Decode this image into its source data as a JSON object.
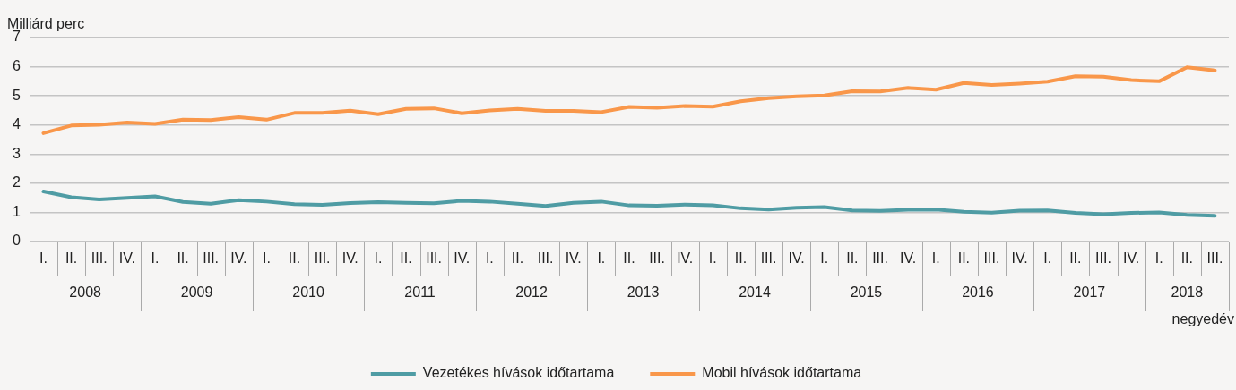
{
  "chart_data": {
    "type": "line",
    "ylabel": "Milliárd perc",
    "xlabel": "negyedév",
    "categories": [
      "I.",
      "II.",
      "III.",
      "IV.",
      "I.",
      "II.",
      "III.",
      "IV.",
      "I.",
      "II.",
      "III.",
      "IV.",
      "I.",
      "II.",
      "III.",
      "IV.",
      "I.",
      "II.",
      "III.",
      "IV.",
      "I.",
      "II.",
      "III.",
      "IV.",
      "I.",
      "II.",
      "III.",
      "IV.",
      "I.",
      "II.",
      "III.",
      "IV.",
      "I.",
      "II.",
      "III.",
      "IV.",
      "I.",
      "II.",
      "III.",
      "IV.",
      "I.",
      "II.",
      "III."
    ],
    "annotations": [
      "2008",
      "2009",
      "2010",
      "2011",
      "2012",
      "2013",
      "2014",
      "2015",
      "2016",
      "2017",
      "2018"
    ],
    "series": [
      {
        "name": "Vezetékes hívások időtartama",
        "color": "#4f9ca4",
        "values": [
          1.72,
          1.52,
          1.44,
          1.5,
          1.55,
          1.36,
          1.3,
          1.42,
          1.37,
          1.28,
          1.26,
          1.32,
          1.35,
          1.33,
          1.31,
          1.4,
          1.37,
          1.3,
          1.22,
          1.33,
          1.37,
          1.24,
          1.23,
          1.27,
          1.24,
          1.14,
          1.1,
          1.16,
          1.18,
          1.07,
          1.05,
          1.09,
          1.1,
          1.02,
          0.99,
          1.06,
          1.07,
          0.98,
          0.94,
          0.98,
          1.0,
          0.91,
          0.88
        ]
      },
      {
        "name": "Mobil hívások időtartama",
        "color": "#f9974a",
        "values": [
          3.72,
          3.98,
          4.01,
          4.08,
          4.04,
          4.18,
          4.17,
          4.27,
          4.18,
          4.41,
          4.41,
          4.49,
          4.37,
          4.55,
          4.57,
          4.4,
          4.5,
          4.55,
          4.48,
          4.48,
          4.44,
          4.62,
          4.59,
          4.65,
          4.63,
          4.81,
          4.92,
          4.98,
          5.01,
          5.16,
          5.15,
          5.27,
          5.21,
          5.44,
          5.37,
          5.42,
          5.49,
          5.67,
          5.66,
          5.54,
          5.5,
          5.98,
          5.87
        ]
      }
    ],
    "ylim": [
      0,
      7
    ],
    "yticks": [
      0,
      1,
      2,
      3,
      4,
      5,
      6,
      7
    ],
    "grid": "y",
    "legend": "bottom",
    "marker": "none",
    "line_style": "solid"
  }
}
